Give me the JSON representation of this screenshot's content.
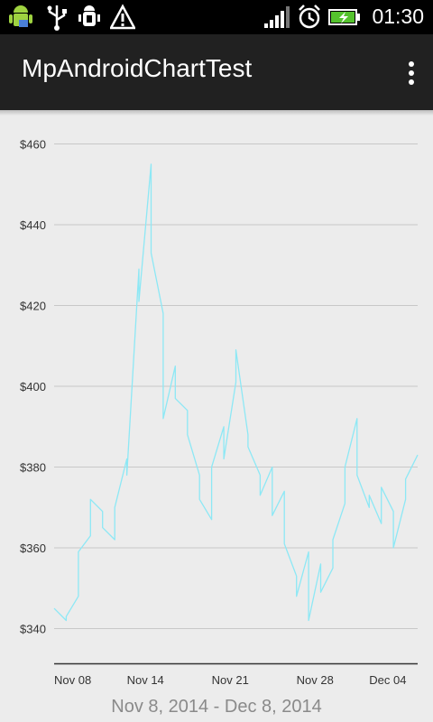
{
  "status_bar": {
    "time": "01:30",
    "icons": [
      "android-icon",
      "usb-icon",
      "debug-icon",
      "warning-icon",
      "signal-icon",
      "alarm-icon",
      "battery-charging-icon"
    ]
  },
  "action_bar": {
    "title": "MpAndroidChartTest",
    "overflow_icon": "overflow-menu-icon"
  },
  "chart_data": {
    "type": "line",
    "y_ticks": [
      "$460",
      "$440",
      "$420",
      "$400",
      "$380",
      "$360",
      "$340"
    ],
    "y_tick_values": [
      460,
      440,
      420,
      400,
      380,
      360,
      340
    ],
    "x_ticks": [
      "Nov 08",
      "Nov 14",
      "Nov 21",
      "Nov 28",
      "Dec 04"
    ],
    "x_tick_dates": [
      "2014-11-08",
      "2014-11-14",
      "2014-11-21",
      "2014-11-28",
      "2014-12-04"
    ],
    "ylim": [
      338,
      460
    ],
    "xlim": [
      "2014-11-08",
      "2014-12-08"
    ],
    "grid": "horizontal",
    "color": "#8de8f5",
    "series": [
      {
        "x": [
          "2014-11-08",
          "2014-11-09",
          "2014-11-09",
          "2014-11-10",
          "2014-11-10",
          "2014-11-11",
          "2014-11-11",
          "2014-11-12",
          "2014-11-12",
          "2014-11-13",
          "2014-11-13",
          "2014-11-14",
          "2014-11-14",
          "2014-11-15",
          "2014-11-15",
          "2014-11-16",
          "2014-11-16",
          "2014-11-17",
          "2014-11-17",
          "2014-11-18",
          "2014-11-18",
          "2014-11-19",
          "2014-11-19",
          "2014-11-20",
          "2014-11-20",
          "2014-11-21",
          "2014-11-21",
          "2014-11-22",
          "2014-11-22",
          "2014-11-23",
          "2014-11-23",
          "2014-11-24",
          "2014-11-24",
          "2014-11-25",
          "2014-11-25",
          "2014-11-26",
          "2014-11-26",
          "2014-11-27",
          "2014-11-27",
          "2014-11-28",
          "2014-11-28",
          "2014-11-29",
          "2014-11-29",
          "2014-11-30",
          "2014-11-30",
          "2014-12-01",
          "2014-12-01",
          "2014-12-02",
          "2014-12-02",
          "2014-12-03",
          "2014-12-03",
          "2014-12-04",
          "2014-12-04",
          "2014-12-05",
          "2014-12-05",
          "2014-12-06",
          "2014-12-06",
          "2014-12-07",
          "2014-12-07",
          "2014-12-08"
        ],
        "y": [
          345,
          342,
          343,
          348,
          359,
          363,
          372,
          369,
          365,
          362,
          370,
          382,
          378,
          429,
          421,
          455,
          433,
          418,
          392,
          405,
          397,
          394,
          388,
          378,
          372,
          367,
          380,
          390,
          382,
          401,
          409,
          388,
          385,
          378,
          373,
          380,
          368,
          374,
          361,
          353,
          348,
          359,
          342,
          356,
          349,
          355,
          362,
          371,
          380,
          392,
          378,
          370,
          373,
          366,
          375,
          369,
          360,
          372,
          377,
          383
        ]
      }
    ]
  },
  "date_range": "Nov 8, 2014 - Dec 8, 2014"
}
